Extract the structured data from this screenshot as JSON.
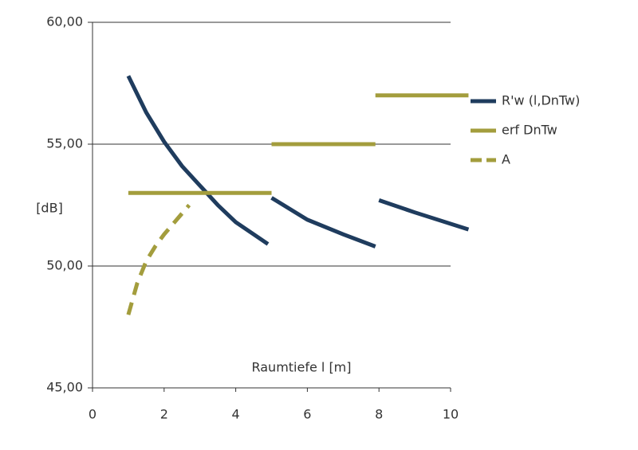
{
  "chart_data": {
    "type": "line",
    "ylabel": "[dB]",
    "xlabel": "Raumtiefe l [m]",
    "xlim": [
      0,
      10
    ],
    "xticks": [
      0,
      2,
      4,
      6,
      8,
      10
    ],
    "ylim": [
      45,
      60
    ],
    "yticks": [
      {
        "value": 45,
        "label": "45,00"
      },
      {
        "value": 50,
        "label": "50,00"
      },
      {
        "value": 55,
        "label": "55,00"
      },
      {
        "value": 60,
        "label": "60,00"
      }
    ],
    "grid": true,
    "legend": "right",
    "series": [
      {
        "name": "R'w (l,DnTw)",
        "color": "#1f3c5e",
        "dash": false,
        "x": [
          1,
          1.5,
          2,
          2.5,
          3,
          3.5,
          4,
          4.5,
          4.9,
          null,
          5,
          6,
          7,
          7.9,
          null,
          8,
          9,
          10.5
        ],
        "values": [
          57.8,
          56.3,
          55.1,
          54.1,
          53.3,
          52.5,
          51.8,
          51.3,
          50.9,
          null,
          52.8,
          51.9,
          51.3,
          50.8,
          null,
          52.7,
          52.2,
          51.5
        ]
      },
      {
        "name": "erf DnTw",
        "color": "#a39d3d",
        "dash": false,
        "x": [
          1,
          5,
          null,
          5,
          7.9,
          null,
          7.9,
          10.5
        ],
        "values": [
          53,
          53,
          null,
          55,
          55,
          null,
          57,
          57
        ]
      },
      {
        "name": "A",
        "color": "#a39d3d",
        "dash": true,
        "x": [
          1,
          1.25,
          1.5,
          1.75,
          2,
          2.35,
          2.7
        ],
        "values": [
          48.0,
          49.3,
          50.2,
          50.8,
          51.3,
          51.9,
          52.5
        ]
      }
    ]
  }
}
